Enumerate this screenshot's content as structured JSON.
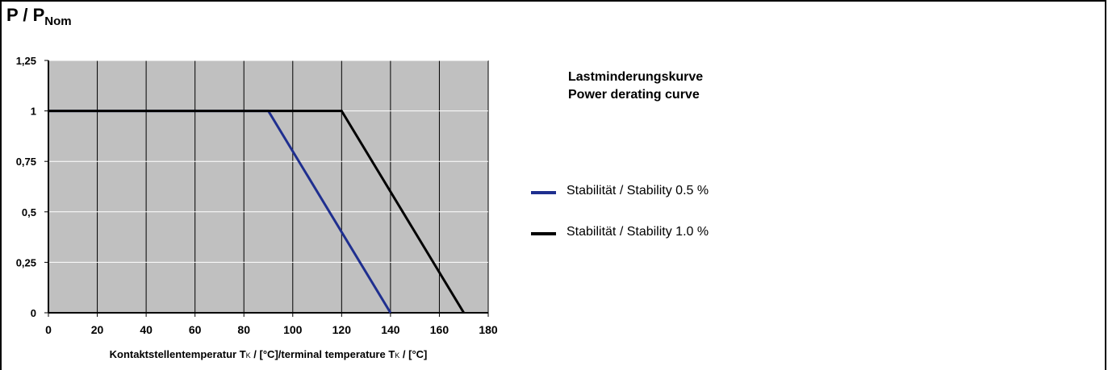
{
  "chart_data": {
    "type": "line",
    "title_lines": [
      "Lastminderungskurve",
      "Power derating curve"
    ],
    "ylabel_main": "P / P",
    "ylabel_sub": "Nom",
    "xlabel_parts": {
      "a": "Kontaktstellentemperatur T",
      "b": "K",
      "c": " / [°C]/terminal temperature T",
      "d": "K",
      "e": " / [°C]"
    },
    "xlim": [
      0,
      180
    ],
    "ylim": [
      0,
      1.25
    ],
    "x_ticks": [
      0,
      20,
      40,
      60,
      80,
      100,
      120,
      140,
      160,
      180
    ],
    "x_tick_labels": [
      "0",
      "20",
      "40",
      "60",
      "80",
      "100",
      "120",
      "140",
      "160",
      "180"
    ],
    "y_ticks": [
      0,
      0.25,
      0.5,
      0.75,
      1,
      1.25
    ],
    "y_tick_labels": [
      "0",
      "0,25",
      "0,5",
      "0,75",
      "1",
      "1,25"
    ],
    "grid": true,
    "legend_position": "right",
    "plot_background": "#c0c0c0",
    "series": [
      {
        "name": "Stabilität / Stability 0.5 %",
        "color": "#1f2f8f",
        "x": [
          0,
          90,
          140
        ],
        "y": [
          1,
          1,
          0
        ]
      },
      {
        "name": "Stabilität / Stability 1.0 %",
        "color": "#000000",
        "x": [
          0,
          120,
          170
        ],
        "y": [
          1,
          1,
          0
        ]
      }
    ]
  }
}
